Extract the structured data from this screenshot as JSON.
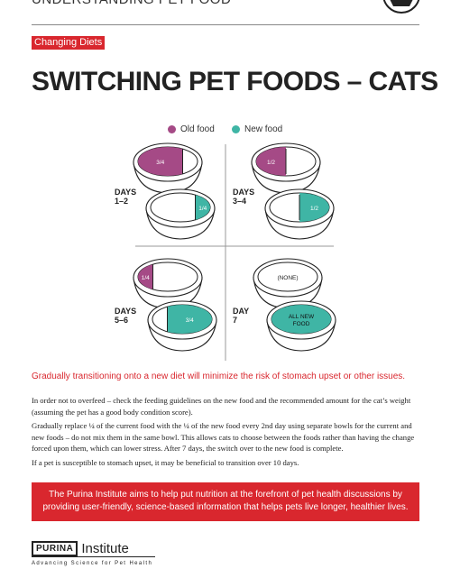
{
  "header": {
    "title": "UNDERSTANDING PET FOOD",
    "icon": "pet-bowl-icon"
  },
  "tag": "Changing Diets",
  "title": "SWITCHING PET FOODS – CATS",
  "legend": {
    "old": {
      "label": "Old food",
      "color": "#a54a86"
    },
    "new": {
      "label": "New food",
      "color": "#3fb5a5"
    }
  },
  "stages": [
    {
      "days_line1": "DAYS",
      "days_line2": "1–2",
      "old_label": "3/4",
      "new_label": "1/4",
      "old_fraction": 0.75,
      "new_fraction": 0.25
    },
    {
      "days_line1": "DAYS",
      "days_line2": "3–4",
      "old_label": "1/2",
      "new_label": "1/2",
      "old_fraction": 0.5,
      "new_fraction": 0.5
    },
    {
      "days_line1": "DAYS",
      "days_line2": "5–6",
      "old_label": "1/4",
      "new_label": "3/4",
      "old_fraction": 0.25,
      "new_fraction": 0.75
    },
    {
      "days_line1": "DAY",
      "days_line2": "7",
      "old_label": "(NONE)",
      "new_label_line1": "ALL NEW",
      "new_label_line2": "FOOD",
      "old_fraction": 0,
      "new_fraction": 1
    }
  ],
  "intro": "Gradually transitioning onto a new diet will minimize the risk of stomach upset or other issues.",
  "paragraphs": [
    "In order not to overfeed – check the feeding guidelines on the new food and the recommended amount for the cat’s weight (assuming the pet has a good body condition score).",
    "Gradually replace ¼ of the current food with the ¼ of the new food every 2nd day using separate bowls for the current and new foods – do not mix them in the same bowl. This allows cats to choose between the foods rather than having the change forced upon them, which can lower stress. After 7 days, the switch over to the new food is complete.",
    "If a pet is susceptible to stomach upset, it may be beneficial to transition over 10 days."
  ],
  "banner": "The Purina Institute aims to help put nutrition at the forefront of pet health discussions by providing user-friendly, science-based information that helps pets live longer, healthier lives.",
  "footer": {
    "brand": "PURINA",
    "institute": "Institute",
    "tagline": "Advancing Science for Pet Health"
  }
}
